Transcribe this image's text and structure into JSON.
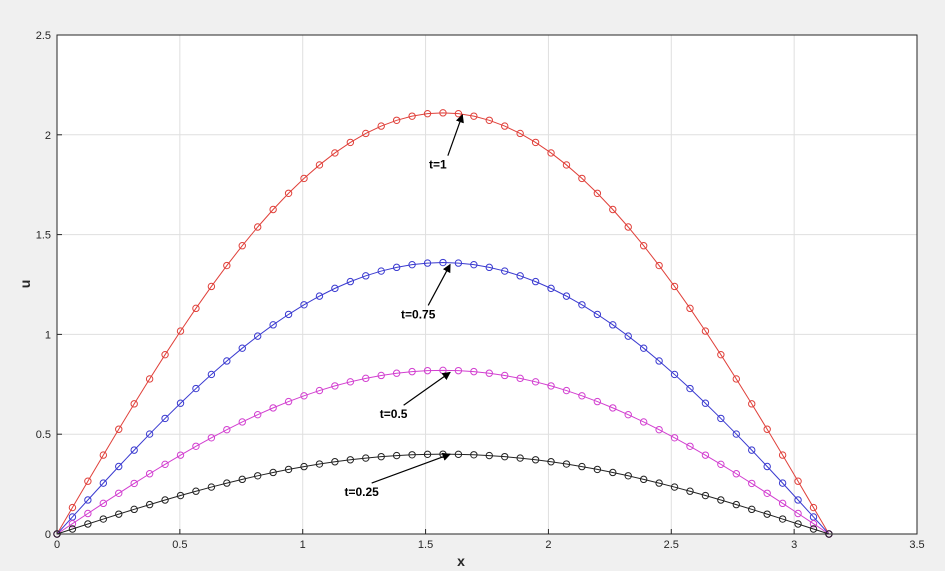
{
  "chart_data": {
    "type": "line",
    "xlabel": "x",
    "ylabel": "u",
    "xlim": [
      0,
      3.5
    ],
    "ylim": [
      0,
      2.5
    ],
    "xticks": [
      "0",
      "0.5",
      "1",
      "1.5",
      "2",
      "2.5",
      "3",
      "3.5"
    ],
    "yticks": [
      "0",
      "0.5",
      "1",
      "1.5",
      "2",
      "2.5"
    ],
    "grid": true,
    "markers": "open-circle",
    "x_range": [
      0,
      3.1416
    ],
    "points_per_series": 51,
    "series": [
      {
        "peak": 2.11,
        "color": "#e0403a"
      },
      {
        "peak": 1.36,
        "color": "#3a3ad0"
      },
      {
        "peak": 0.82,
        "color": "#d23fd0"
      },
      {
        "peak": 0.4,
        "color": "#222222"
      }
    ],
    "annotations": [
      {
        "text": "t=1",
        "x": 1.55,
        "y": 1.83,
        "arrow_to": [
          1.65,
          2.11
        ]
      },
      {
        "text": "t=0.75",
        "x": 1.47,
        "y": 1.08,
        "arrow_to": [
          1.6,
          1.36
        ]
      },
      {
        "text": "t=0.5",
        "x": 1.37,
        "y": 0.58,
        "arrow_to": [
          1.6,
          0.82
        ]
      },
      {
        "text": "t=0.25",
        "x": 1.24,
        "y": 0.19,
        "arrow_to": [
          1.6,
          0.41
        ]
      }
    ]
  }
}
